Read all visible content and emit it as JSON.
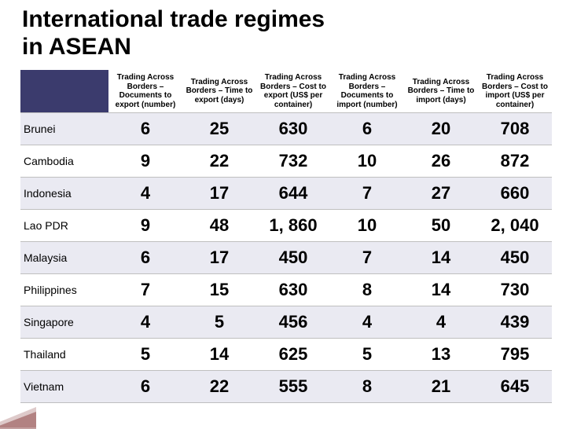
{
  "title_line1": "International trade regimes",
  "title_line2": " in ASEAN",
  "table": {
    "type": "table",
    "columns": [
      "Trading Across Borders – Documents to export (number)",
      "Trading Across Borders – Time to export (days)",
      "Trading Across Borders – Cost to export (US$ per container)",
      "Trading Across Borders – Documents to import (number)",
      "Trading Across Borders – Time to import (days)",
      "Trading Across Borders – Cost to import (US$ per container)"
    ],
    "row_header_color": "#3b3b6d",
    "row_stripe_colors": [
      "#eaeaf2",
      "#ffffff"
    ],
    "border_color": "#bfbfbf",
    "header_fontsize": 10,
    "country_fontsize": 14,
    "value_fontsize": 22,
    "value_fontweight": "bold",
    "text_color": "#000000",
    "rows": [
      {
        "country": "Brunei",
        "values": [
          "6",
          "25",
          "630",
          "6",
          "20",
          "708"
        ]
      },
      {
        "country": "Cambodia",
        "values": [
          "9",
          "22",
          "732",
          "10",
          "26",
          "872"
        ]
      },
      {
        "country": "Indonesia",
        "values": [
          "4",
          "17",
          "644",
          "7",
          "27",
          "660"
        ]
      },
      {
        "country": "Lao PDR",
        "values": [
          "9",
          "48",
          "1, 860",
          "10",
          "50",
          "2, 040"
        ]
      },
      {
        "country": "Malaysia",
        "values": [
          "6",
          "17",
          "450",
          "7",
          "14",
          "450"
        ]
      },
      {
        "country": "Philippines",
        "values": [
          "7",
          "15",
          "630",
          "8",
          "14",
          "730"
        ]
      },
      {
        "country": "Singapore",
        "values": [
          "4",
          "5",
          "456",
          "4",
          "4",
          "439"
        ]
      },
      {
        "country": "Thailand",
        "values": [
          "5",
          "14",
          "625",
          "5",
          "13",
          "795"
        ]
      },
      {
        "country": "Vietnam",
        "values": [
          "6",
          "22",
          "555",
          "8",
          "21",
          "645"
        ]
      }
    ]
  }
}
